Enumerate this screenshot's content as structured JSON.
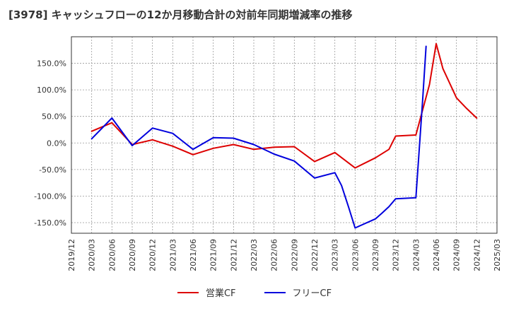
{
  "chart_data": {
    "type": "line",
    "title": "[3978]  キャッシュフローの12か月移動合計の対前年同期増減率の推移",
    "ylim": [
      -170,
      200
    ],
    "y_ticks": [
      -150,
      -100,
      -50,
      0,
      50,
      100,
      150
    ],
    "y_tick_labels": [
      "-150.0%",
      "-100.0%",
      "-50.0%",
      "0.0%",
      "50.0%",
      "100.0%",
      "150.0%"
    ],
    "x_tick_labels": [
      "2019/12",
      "2020/03",
      "2020/06",
      "2020/09",
      "2020/12",
      "2021/03",
      "2021/06",
      "2021/09",
      "2021/12",
      "2022/03",
      "2022/06",
      "2022/09",
      "2022/12",
      "2023/03",
      "2023/06",
      "2023/09",
      "2023/12",
      "2024/03",
      "2024/06",
      "2024/09",
      "2024/12",
      "2025/03"
    ],
    "grid": true,
    "legend_position": "bottom",
    "series": [
      {
        "name": "営業CF",
        "color": "#dd0000",
        "points": [
          [
            1,
            22
          ],
          [
            2,
            38
          ],
          [
            3,
            -3
          ],
          [
            4,
            6
          ],
          [
            5,
            -6
          ],
          [
            6,
            -22
          ],
          [
            7,
            -10
          ],
          [
            8,
            -3
          ],
          [
            9,
            -12
          ],
          [
            10,
            -8
          ],
          [
            11,
            -7
          ],
          [
            12,
            -35
          ],
          [
            13,
            -18
          ],
          [
            14,
            -47
          ],
          [
            15,
            -28
          ],
          [
            15.67,
            -12
          ],
          [
            16,
            13
          ],
          [
            17,
            15
          ],
          [
            17.67,
            110
          ],
          [
            18,
            187
          ],
          [
            18.33,
            140
          ],
          [
            19,
            85
          ],
          [
            19.5,
            65
          ],
          [
            20,
            47
          ]
        ]
      },
      {
        "name": "フリーCF",
        "color": "#0000dd",
        "points": [
          [
            1,
            8
          ],
          [
            2,
            47
          ],
          [
            3,
            -5
          ],
          [
            4,
            28
          ],
          [
            5,
            18
          ],
          [
            6,
            -12
          ],
          [
            7,
            10
          ],
          [
            8,
            9
          ],
          [
            9,
            -3
          ],
          [
            10,
            -21
          ],
          [
            11,
            -34
          ],
          [
            12,
            -66
          ],
          [
            13,
            -56
          ],
          [
            13.33,
            -80
          ],
          [
            13.67,
            -120
          ],
          [
            14,
            -160
          ],
          [
            15,
            -143
          ],
          [
            15.33,
            -132
          ],
          [
            15.67,
            -120
          ],
          [
            16,
            -105
          ],
          [
            17,
            -103
          ],
          [
            17.33,
            80
          ],
          [
            17.5,
            182
          ]
        ]
      }
    ]
  }
}
